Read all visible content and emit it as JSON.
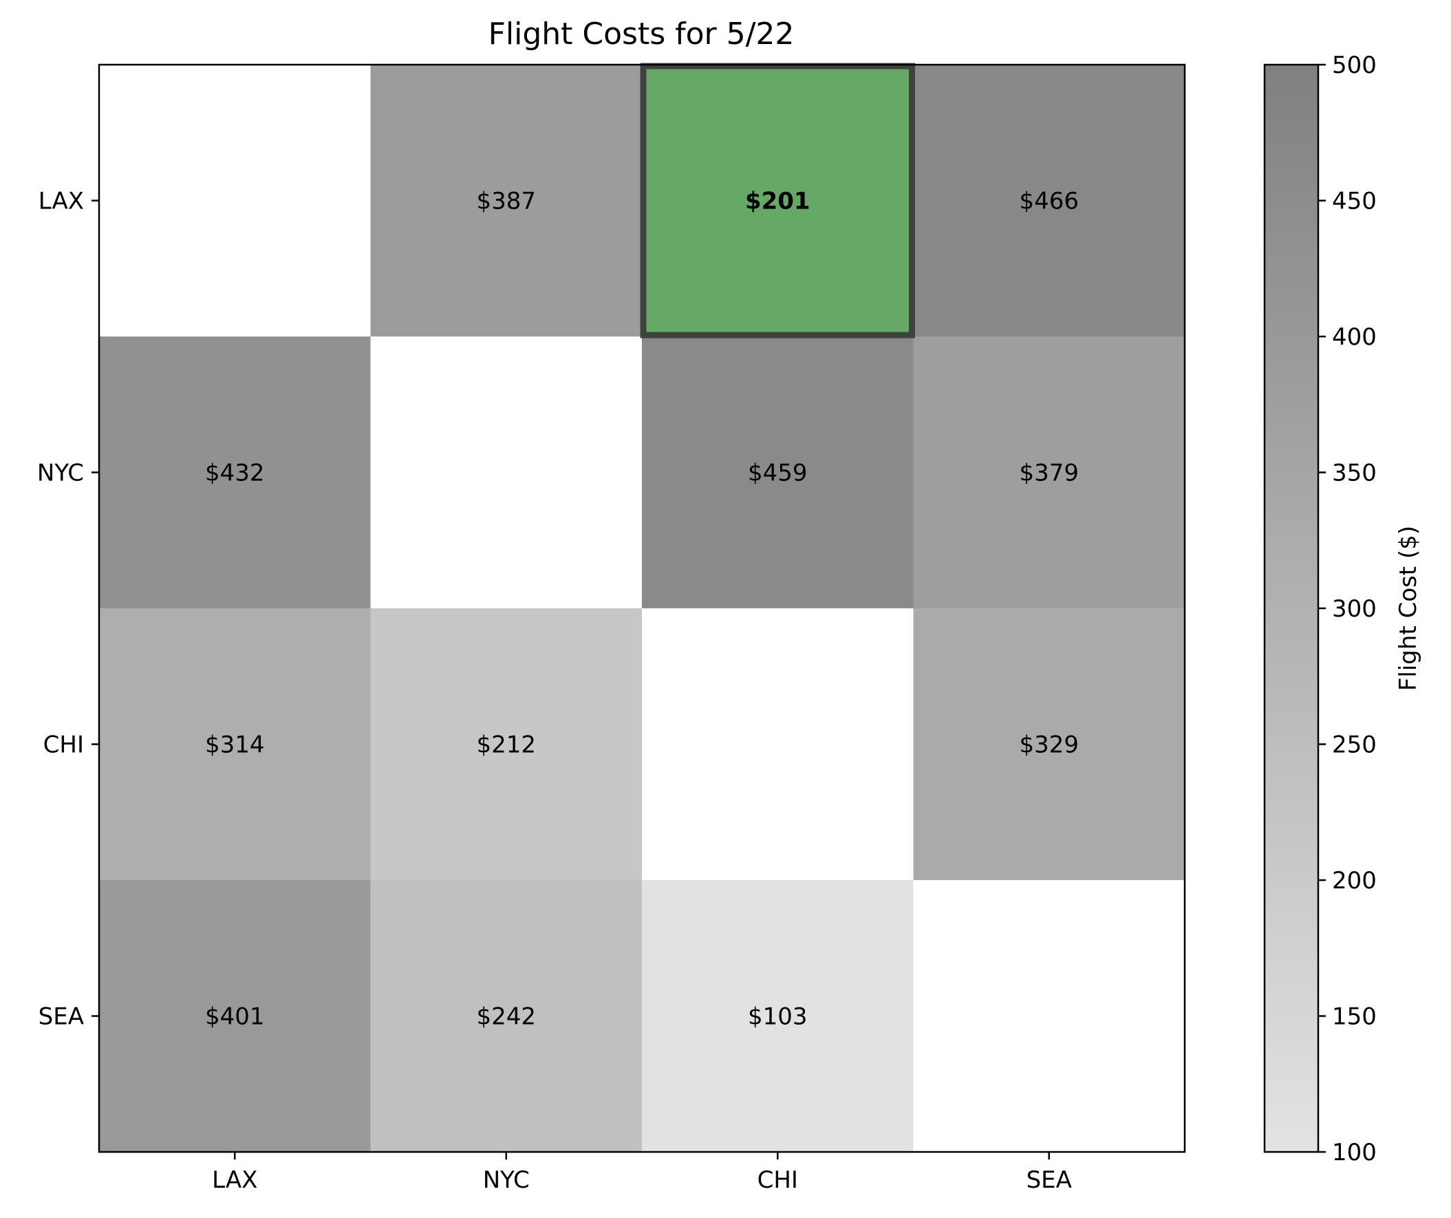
{
  "chart_data": {
    "type": "heatmap",
    "title": "Flight Costs for 5/22",
    "rows": [
      "LAX",
      "NYC",
      "CHI",
      "SEA"
    ],
    "columns": [
      "LAX",
      "NYC",
      "CHI",
      "SEA"
    ],
    "values": [
      [
        null,
        387,
        201,
        466
      ],
      [
        432,
        null,
        459,
        379
      ],
      [
        314,
        212,
        null,
        329
      ],
      [
        401,
        242,
        103,
        null
      ]
    ],
    "cell_labels": [
      [
        "",
        "$387",
        "$201",
        "$466"
      ],
      [
        "$432",
        "",
        "$459",
        "$379"
      ],
      [
        "$314",
        "$212",
        "",
        "$329"
      ],
      [
        "$401",
        "$242",
        "$103",
        ""
      ]
    ],
    "highlight": {
      "row": 1,
      "col": 3,
      "color": "#66a866"
    },
    "colorbar": {
      "label": "Flight Cost ($)",
      "range": [
        100,
        500
      ],
      "ticks": [
        "100",
        "150",
        "200",
        "250",
        "300",
        "350",
        "400",
        "450",
        "500"
      ],
      "color_low": "#e3e3e3",
      "color_high": "#808080"
    }
  }
}
